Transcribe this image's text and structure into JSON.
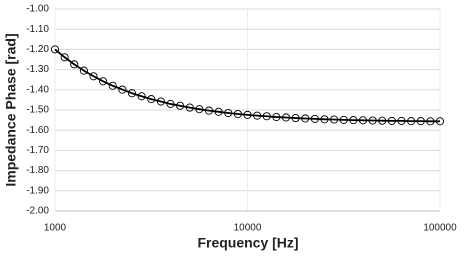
{
  "chart_data": {
    "type": "scatter-line",
    "x_label": "Frequency [Hz]",
    "y_label": "Impedance Phase [rad]",
    "x_scale": "log",
    "grid": true,
    "xlim": [
      1000,
      100000
    ],
    "xticks": [
      1000,
      10000,
      100000
    ],
    "ylim": [
      -2,
      -1
    ],
    "yticks": [
      {
        "value": -1,
        "label": "-1.00"
      },
      {
        "value": -1.1,
        "label": "-1.10"
      },
      {
        "value": -1.2,
        "label": "-1.20"
      },
      {
        "value": -1.3,
        "label": "-1.30"
      },
      {
        "value": -1.4,
        "label": "-1.40"
      },
      {
        "value": -1.5,
        "label": "-1.50"
      },
      {
        "value": -1.6,
        "label": "-1.60"
      },
      {
        "value": -1.7,
        "label": "-1.70"
      },
      {
        "value": -1.8,
        "label": "-1.80"
      },
      {
        "value": -1.9,
        "label": "-1.90"
      },
      {
        "value": -2,
        "label": "-2.00"
      }
    ],
    "x": [
      1000,
      1122,
      1259,
      1413,
      1585,
      1778,
      1995,
      2239,
      2512,
      2818,
      3162,
      3548,
      3981,
      4467,
      5012,
      5623,
      6310,
      7079,
      7943,
      8913,
      10000,
      11220,
      12589,
      14125,
      15849,
      17783,
      19953,
      22387,
      25119,
      28184,
      31623,
      35481,
      39811,
      44668,
      50119,
      56234,
      63096,
      70795,
      79433,
      89125,
      100000
    ],
    "series": [
      {
        "color": "#000000",
        "marker": "circle",
        "line": true,
        "values": [
          -1.2,
          -1.239,
          -1.274,
          -1.305,
          -1.333,
          -1.358,
          -1.38,
          -1.399,
          -1.417,
          -1.432,
          -1.446,
          -1.458,
          -1.47,
          -1.479,
          -1.488,
          -1.496,
          -1.503,
          -1.509,
          -1.515,
          -1.52,
          -1.524,
          -1.528,
          -1.531,
          -1.535,
          -1.537,
          -1.54,
          -1.542,
          -1.544,
          -1.546,
          -1.547,
          -1.549,
          -1.55,
          -1.551,
          -1.552,
          -1.553,
          -1.554,
          -1.554,
          -1.555,
          -1.555,
          -1.556,
          -1.556
        ]
      }
    ]
  }
}
